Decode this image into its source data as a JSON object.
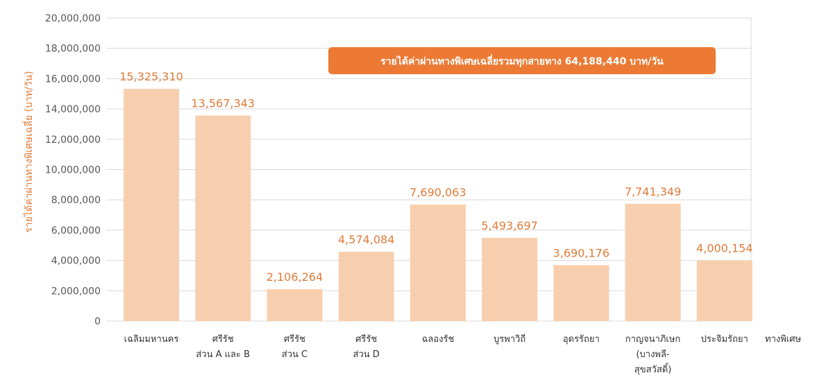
{
  "chart_data": {
    "type": "bar",
    "title": "",
    "ylabel": "รายได้ค่าผ่านทางพิเศษเฉลี่ย (บาท/วัน)",
    "xlabel": "ทางพิเศษ",
    "ylim": [
      0,
      20000000
    ],
    "yticks": [
      "0",
      "2,000,000",
      "4,000,000",
      "6,000,000",
      "8,000,000",
      "10,000,000",
      "12,000,000",
      "14,000,000",
      "16,000,000",
      "18,000,000",
      "20,000,000"
    ],
    "ytick_values": [
      0,
      2000000,
      4000000,
      6000000,
      8000000,
      10000000,
      12000000,
      14000000,
      16000000,
      18000000,
      20000000
    ],
    "grid": true,
    "categories": [
      [
        "เฉลิมมหานคร"
      ],
      [
        "ศรีรัช",
        "ส่วน A และ B"
      ],
      [
        "ศรีรัช",
        "ส่วน C"
      ],
      [
        "ศรีรัช",
        "ส่วน D"
      ],
      [
        "ฉลองรัช"
      ],
      [
        "บูรพาวิถี"
      ],
      [
        "อุดรรัถยา"
      ],
      [
        "กาญจนาภิเษก",
        "(บางพลี-",
        "สุขสวัสดิ์)"
      ],
      [
        "ประจิมรัถยา"
      ]
    ],
    "values": [
      15325310,
      13567343,
      2106264,
      4574084,
      7690063,
      5493697,
      3690176,
      7741349,
      4000154
    ],
    "data_labels": [
      "15,325,310",
      "13,567,343",
      "2,106,264",
      "4,574,084",
      "7,690,063",
      "5,493,697",
      "3,690,176",
      "7,741,349",
      "4,000,154"
    ],
    "annotation": "รายได้ค่าผ่านทางพิเศษเฉลี่ยรวมทุกสายทาง 64,188,440 บาท/วัน",
    "colors": {
      "bar": "#f8cfae",
      "label": "#e07b39",
      "banner": "#ec7a34",
      "grid": "#d9d9d9"
    }
  }
}
